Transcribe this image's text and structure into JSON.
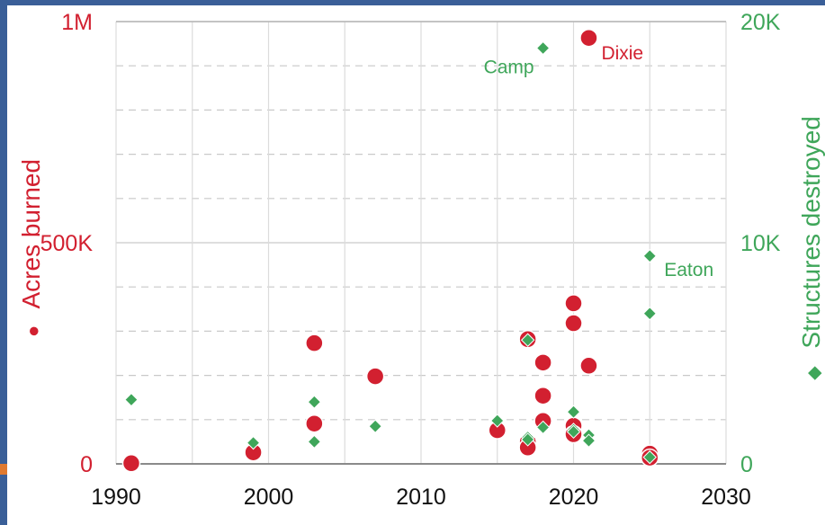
{
  "chart_data": {
    "type": "scatter",
    "title": "",
    "xlabel": "",
    "ylabel": "Acres burned",
    "y2label": "Structures destroyed",
    "xlim": [
      1990,
      2030
    ],
    "ylim": [
      0,
      1000000
    ],
    "y2lim": [
      0,
      20000
    ],
    "x_ticks": [
      "1990",
      "2000",
      "2010",
      "2020",
      "2030"
    ],
    "y_ticks": [
      "0",
      "500K",
      "1M"
    ],
    "y2_ticks": [
      "0",
      "10K",
      "20K"
    ],
    "legend_left_marker": "●",
    "legend_right_marker": "◆",
    "grid": true,
    "colors": {
      "acres": "#d22030",
      "structures": "#3fa65a"
    },
    "series": [
      {
        "axis": "left",
        "marker": "circle",
        "points": [
          {
            "x": 1991,
            "y": 1500
          },
          {
            "x": 1999,
            "y": 26000
          },
          {
            "x": 2003,
            "y": 273000
          },
          {
            "x": 2003,
            "y": 91000
          },
          {
            "x": 2007,
            "y": 198000
          },
          {
            "x": 2015,
            "y": 76000
          },
          {
            "x": 2017,
            "y": 282000
          },
          {
            "x": 2017,
            "y": 50000
          },
          {
            "x": 2017,
            "y": 37000
          },
          {
            "x": 2018,
            "y": 229000
          },
          {
            "x": 2018,
            "y": 154000
          },
          {
            "x": 2018,
            "y": 97000
          },
          {
            "x": 2020,
            "y": 363000
          },
          {
            "x": 2020,
            "y": 318000
          },
          {
            "x": 2020,
            "y": 86000
          },
          {
            "x": 2020,
            "y": 67000
          },
          {
            "x": 2021,
            "y": 963000
          },
          {
            "x": 2021,
            "y": 222000
          },
          {
            "x": 2025,
            "y": 23000
          },
          {
            "x": 2025,
            "y": 14000
          }
        ]
      },
      {
        "axis": "right",
        "marker": "diamond",
        "points": [
          {
            "x": 1991,
            "y": 2900
          },
          {
            "x": 1999,
            "y": 950
          },
          {
            "x": 2003,
            "y": 2800
          },
          {
            "x": 2003,
            "y": 1000
          },
          {
            "x": 2007,
            "y": 1700
          },
          {
            "x": 2015,
            "y": 1950
          },
          {
            "x": 2017,
            "y": 5600
          },
          {
            "x": 2017,
            "y": 1200
          },
          {
            "x": 2017,
            "y": 1100
          },
          {
            "x": 2018,
            "y": 18800
          },
          {
            "x": 2018,
            "y": 1650
          },
          {
            "x": 2020,
            "y": 2350
          },
          {
            "x": 2020,
            "y": 1550
          },
          {
            "x": 2020,
            "y": 1450
          },
          {
            "x": 2021,
            "y": 1300
          },
          {
            "x": 2021,
            "y": 1050
          },
          {
            "x": 2025,
            "y": 9400
          },
          {
            "x": 2025,
            "y": 6800
          },
          {
            "x": 2025,
            "y": 300
          }
        ]
      }
    ],
    "annotations": [
      {
        "text": "Dixie",
        "x": 2021,
        "y": 963000,
        "axis": "left"
      },
      {
        "text": "Camp",
        "x": 2018,
        "y": 18800,
        "axis": "right"
      },
      {
        "text": "Eaton",
        "x": 2025,
        "y": 9400,
        "axis": "right"
      }
    ]
  }
}
